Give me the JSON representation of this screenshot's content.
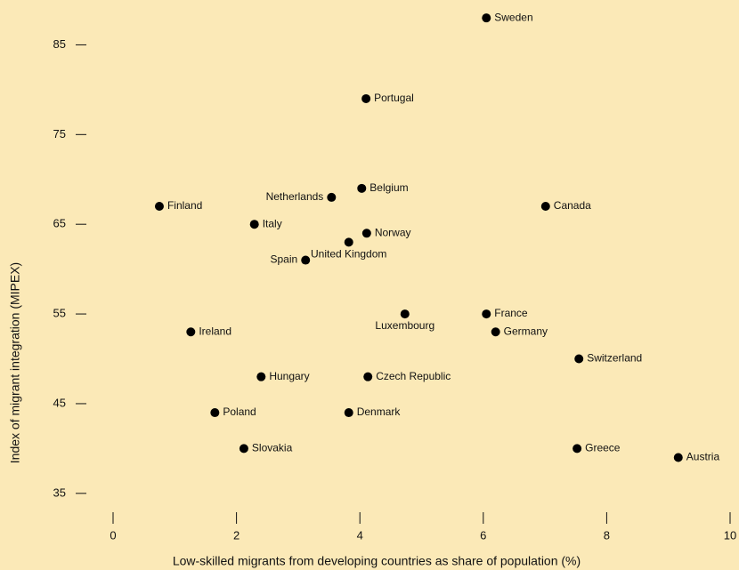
{
  "chart_data": {
    "type": "scatter",
    "x_label": "Low-skilled migrants from developing countries as share of population (%)",
    "y_label": "Index of migrant integration (MIPEX)",
    "point_labels": [
      "Sweden",
      "Portugal",
      "Belgium",
      "Netherlands",
      "Finland",
      "Canada",
      "Italy",
      "Norway",
      "United Kingdom",
      "Spain",
      "Luxembourg",
      "France",
      "Ireland",
      "Germany",
      "Switzerland",
      "Hungary",
      "Czech Republic",
      "Poland",
      "Denmark",
      "Slovakia",
      "Greece",
      "Austria"
    ],
    "x": [
      6.05,
      4.1,
      4.03,
      3.54,
      0.75,
      7.01,
      2.29,
      4.11,
      3.82,
      3.12,
      4.73,
      6.05,
      1.26,
      6.2,
      7.55,
      2.4,
      4.13,
      1.65,
      3.82,
      2.12,
      7.52,
      9.16
    ],
    "values": [
      88,
      79,
      69,
      68,
      67,
      67,
      65,
      64,
      63,
      61,
      55,
      55,
      53,
      53,
      50,
      48,
      48,
      44,
      44,
      40,
      40,
      39
    ],
    "color": "#000000",
    "xlim": [
      0,
      10
    ],
    "xticks": [
      0,
      2,
      4,
      6,
      8,
      10
    ],
    "ylim": [
      33,
      90
    ],
    "yticks": [
      35,
      45,
      55,
      65,
      75,
      85
    ]
  }
}
